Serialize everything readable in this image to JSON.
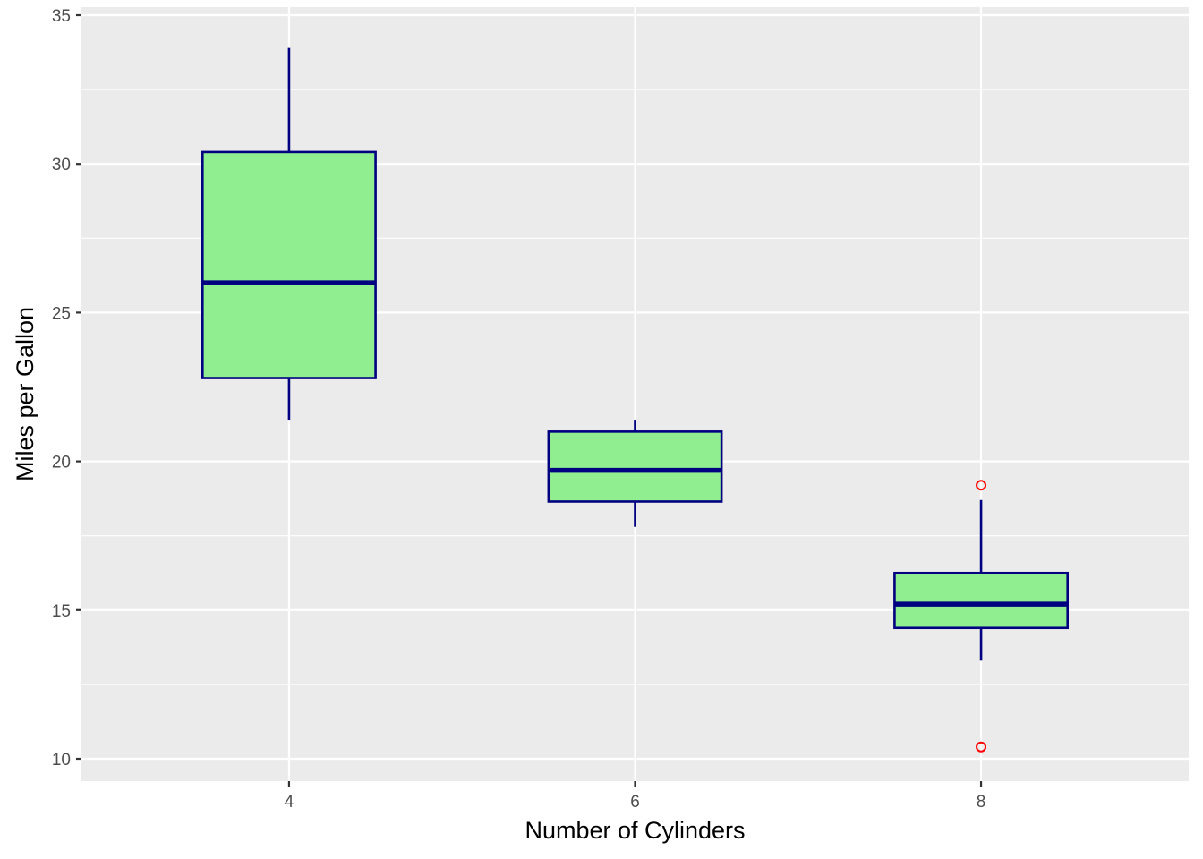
{
  "chart_data": {
    "type": "box",
    "title": "",
    "xlabel": "Number of Cylinders",
    "ylabel": "Miles per Gallon",
    "categories": [
      "4",
      "6",
      "8"
    ],
    "x_values": [
      4,
      6,
      8
    ],
    "xlim": [
      2.8,
      9.2
    ],
    "ylim": [
      9.25,
      35
    ],
    "y_ticks": [
      10,
      15,
      20,
      25,
      30,
      35
    ],
    "x_ticks": [
      4,
      6,
      8
    ],
    "grid": true,
    "legend": "none",
    "boxes": [
      {
        "category": "4",
        "whisker_low": 21.4,
        "q1": 22.8,
        "median": 26.0,
        "q3": 30.4,
        "whisker_high": 33.9,
        "outliers": []
      },
      {
        "category": "6",
        "whisker_low": 17.8,
        "q1": 18.65,
        "median": 19.7,
        "q3": 21.0,
        "whisker_high": 21.4,
        "outliers": []
      },
      {
        "category": "8",
        "whisker_low": 13.3,
        "q1": 14.4,
        "median": 15.2,
        "q3": 16.25,
        "whisker_high": 18.7,
        "outliers": [
          19.2,
          10.4
        ]
      }
    ],
    "colors": {
      "panel_background": "#ebebeb",
      "grid": "#ffffff",
      "box_fill": "#90ee90",
      "box_outline": "#000080",
      "outlier": "#ff0000"
    }
  }
}
